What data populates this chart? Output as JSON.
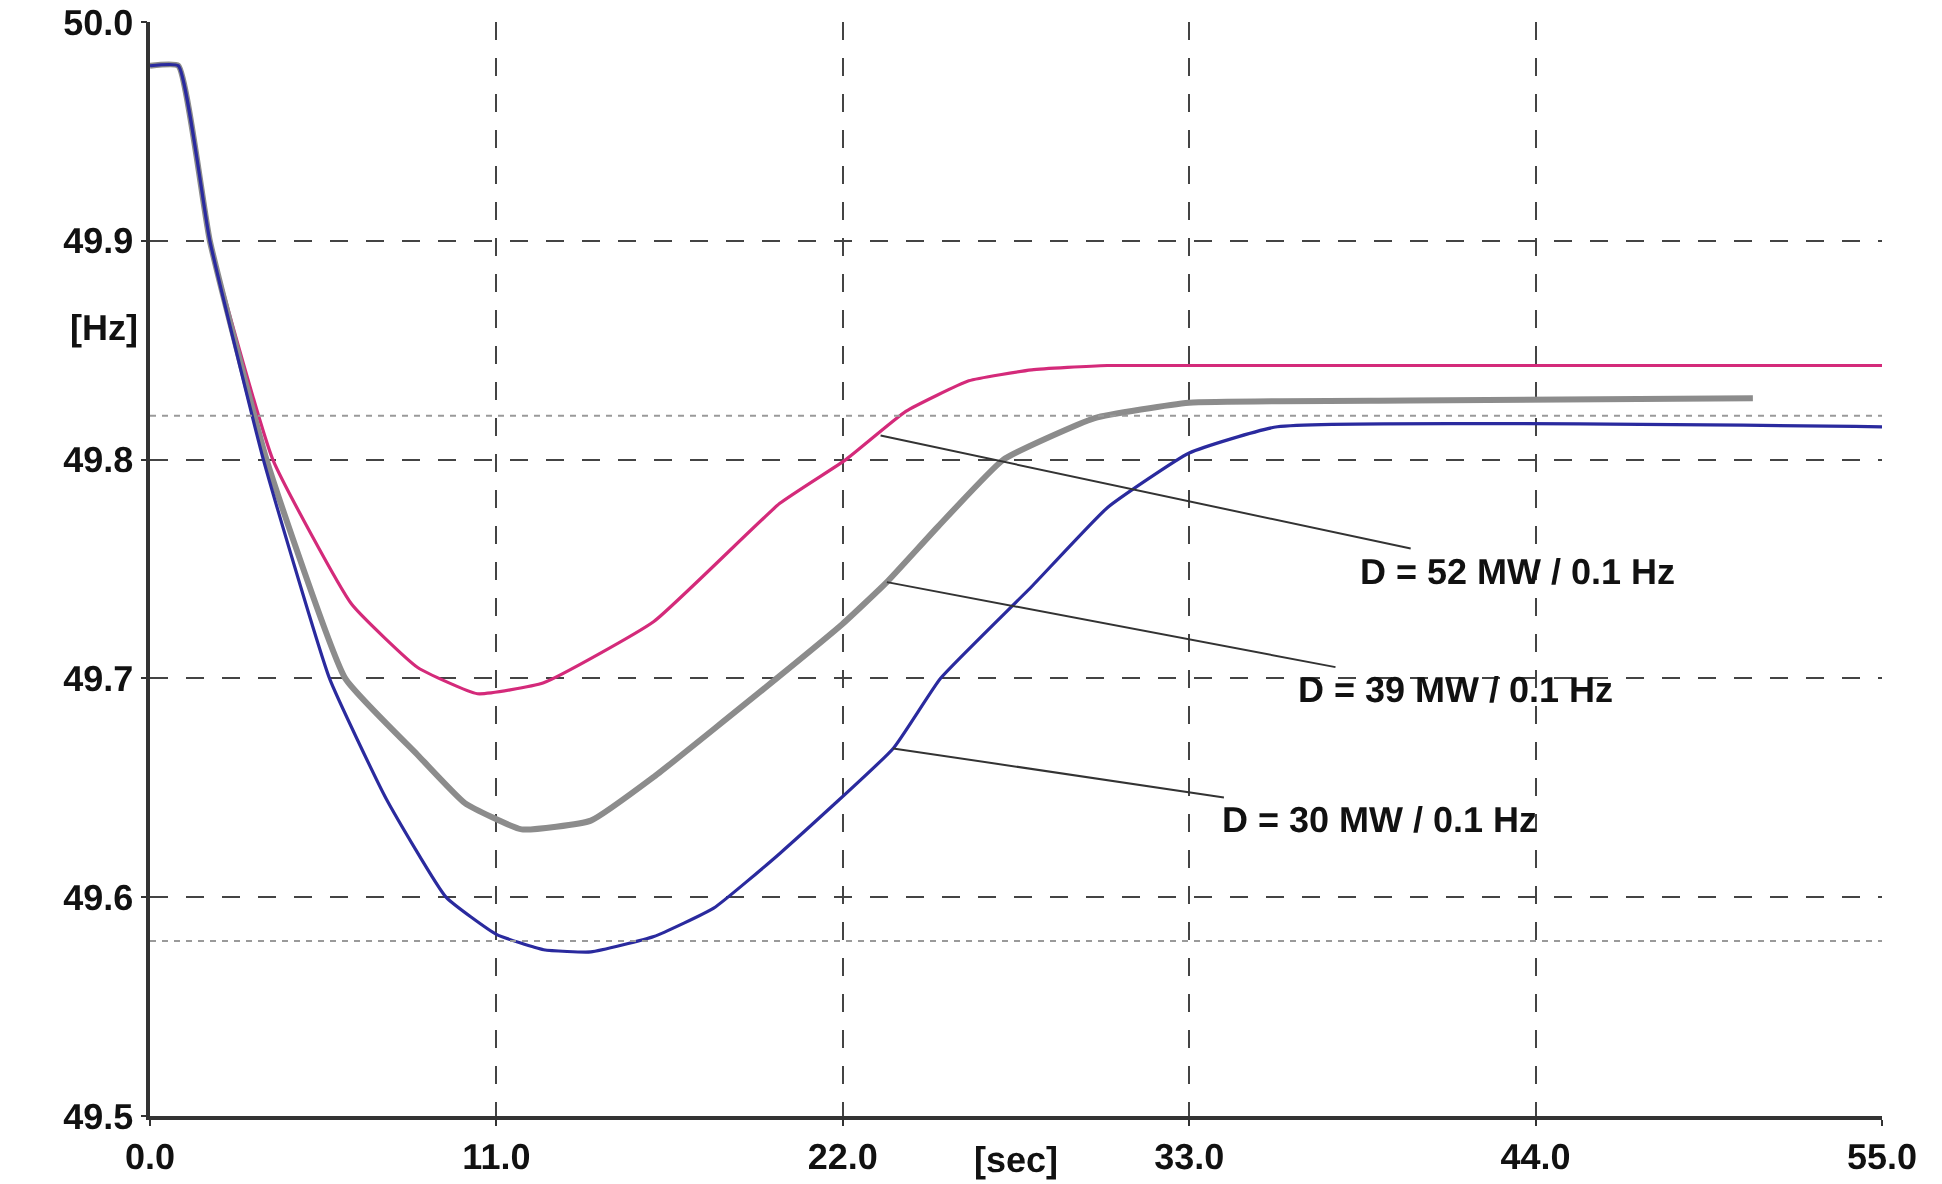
{
  "chart_data": {
    "type": "line",
    "xlabel": "[sec]",
    "ylabel": "[Hz]",
    "xlim": [
      0,
      55
    ],
    "ylim": [
      49.5,
      50.0
    ],
    "xticks": [
      {
        "value": 0,
        "label": "0.0"
      },
      {
        "value": 11,
        "label": "11.0"
      },
      {
        "value": 22,
        "label": "22.0"
      },
      {
        "value": 33,
        "label": "33.0"
      },
      {
        "value": 44,
        "label": "44.0"
      },
      {
        "value": 55,
        "label": "55.0"
      }
    ],
    "yticks": [
      {
        "value": 49.5,
        "label": "49.5"
      },
      {
        "value": 49.6,
        "label": "49.6"
      },
      {
        "value": 49.7,
        "label": "49.7"
      },
      {
        "value": 49.8,
        "label": "49.8"
      },
      {
        "value": 49.9,
        "label": "49.9"
      },
      {
        "value": 50.0,
        "label": "50.0"
      }
    ],
    "grid": true,
    "marker": "none",
    "line_style": "solid",
    "series": [
      {
        "color": "#d42a7a",
        "x": [
          0,
          0.9,
          1.9,
          3.9,
          6.4,
          8.5,
          10.4,
          12.5,
          16,
          20,
          22.1,
          24,
          26,
          28,
          30.4,
          55
        ],
        "values": [
          49.98,
          49.98,
          49.9,
          49.8,
          49.734,
          49.705,
          49.693,
          49.698,
          49.726,
          49.78,
          49.8,
          49.822,
          49.836,
          49.841,
          49.843,
          49.843
        ]
      },
      {
        "color": "#8c8c8c",
        "x": [
          0,
          0.9,
          1.9,
          3.7,
          6.2,
          8.5,
          10,
          11.8,
          14,
          16,
          19.9,
          22,
          23.4,
          25,
          27.1,
          30,
          33,
          40,
          50.9
        ],
        "values": [
          49.98,
          49.98,
          49.9,
          49.8,
          49.7,
          49.665,
          49.643,
          49.631,
          49.635,
          49.655,
          49.7,
          49.725,
          49.744,
          49.769,
          49.8,
          49.819,
          49.826,
          49.827,
          49.828
        ]
      },
      {
        "color": "#2a2a9e",
        "x": [
          0,
          0.9,
          1.9,
          3.6,
          5.7,
          7.5,
          9.4,
          11,
          12.5,
          14,
          16,
          17.9,
          20,
          23.6,
          25.1,
          28,
          30.4,
          33,
          35.8,
          55
        ],
        "values": [
          49.98,
          49.98,
          49.9,
          49.8,
          49.7,
          49.645,
          49.6,
          49.583,
          49.576,
          49.575,
          49.582,
          49.595,
          49.62,
          49.668,
          49.7,
          49.742,
          49.778,
          49.803,
          49.815,
          49.815
        ]
      }
    ],
    "ref_lines": [
      {
        "axis": "y",
        "value": 49.82,
        "color": "#9a9a9a",
        "line_style": "dotted"
      },
      {
        "axis": "y",
        "value": 49.58,
        "color": "#9a9a9a",
        "line_style": "dotted"
      }
    ],
    "annotations": [
      {
        "text": "D = 52 MW / 0.1 Hz",
        "x": 23.2,
        "y": 49.811
      },
      {
        "text": "D = 39 MW / 0.1 Hz",
        "x": 23.4,
        "y": 49.744
      },
      {
        "text": "D = 30 MW / 0.1 Hz",
        "x": 23.6,
        "y": 49.668
      }
    ]
  }
}
